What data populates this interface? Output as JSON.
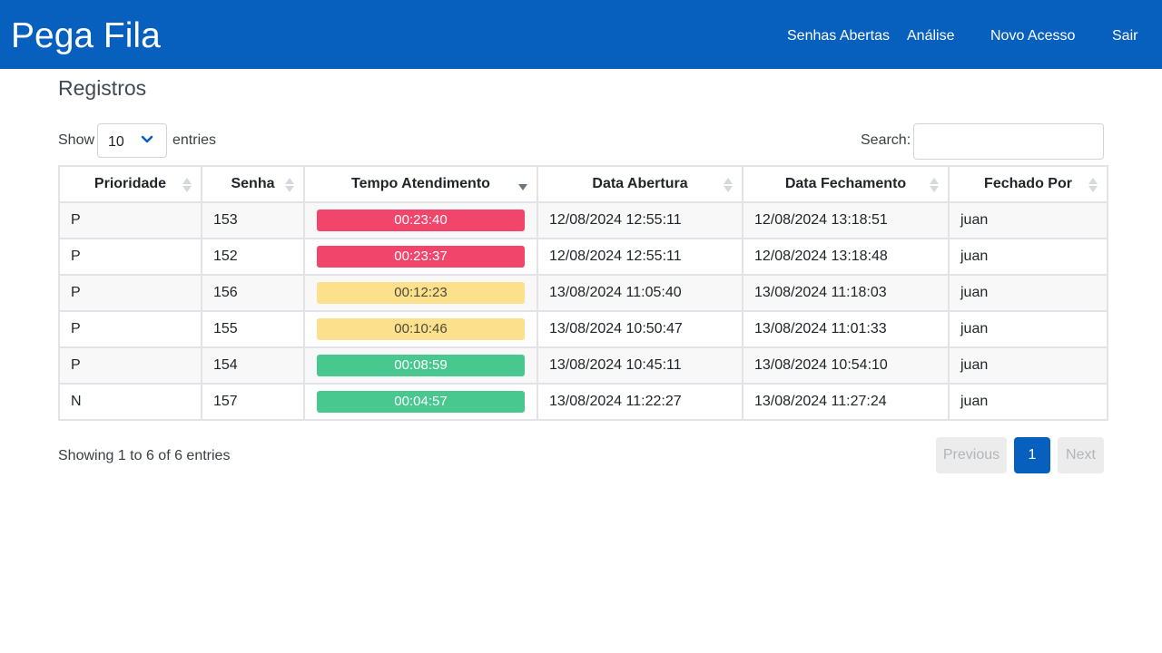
{
  "app": {
    "brand": "Pega Fila"
  },
  "nav": {
    "senhas_abertas": "Senhas Abertas",
    "analise": "Análise",
    "novo_acesso": "Novo Acesso",
    "sair": "Sair"
  },
  "page": {
    "title": "Registros"
  },
  "length_control": {
    "show_label": "Show",
    "value": "10",
    "entries_label": "entries"
  },
  "search": {
    "label": "Search:",
    "value": ""
  },
  "table": {
    "columns": [
      "Prioridade",
      "Senha",
      "Tempo Atendimento",
      "Data Abertura",
      "Data Fechamento",
      "Fechado Por"
    ],
    "sorted_column": "Tempo Atendimento",
    "sort_direction": "descending",
    "rows": [
      {
        "prioridade": "P",
        "senha": "153",
        "tempo": "00:23:40",
        "status": "red",
        "abertura": "12/08/2024 12:55:11",
        "fechamento": "12/08/2024 13:18:51",
        "fechado_por": "juan"
      },
      {
        "prioridade": "P",
        "senha": "152",
        "tempo": "00:23:37",
        "status": "red",
        "abertura": "12/08/2024 12:55:11",
        "fechamento": "12/08/2024 13:18:48",
        "fechado_por": "juan"
      },
      {
        "prioridade": "P",
        "senha": "156",
        "tempo": "00:12:23",
        "status": "yellow",
        "abertura": "13/08/2024 11:05:40",
        "fechamento": "13/08/2024 11:18:03",
        "fechado_por": "juan"
      },
      {
        "prioridade": "P",
        "senha": "155",
        "tempo": "00:10:46",
        "status": "yellow",
        "abertura": "13/08/2024 10:50:47",
        "fechamento": "13/08/2024 11:01:33",
        "fechado_por": "juan"
      },
      {
        "prioridade": "P",
        "senha": "154",
        "tempo": "00:08:59",
        "status": "green",
        "abertura": "13/08/2024 10:45:11",
        "fechamento": "13/08/2024 10:54:10",
        "fechado_por": "juan"
      },
      {
        "prioridade": "N",
        "senha": "157",
        "tempo": "00:04:57",
        "status": "green",
        "abertura": "13/08/2024 11:22:27",
        "fechamento": "13/08/2024 11:27:24",
        "fechado_por": "juan"
      }
    ]
  },
  "status_colors": {
    "red": {
      "bg": "#f1456c",
      "fg": "#ffffff"
    },
    "yellow": {
      "bg": "#fde08b",
      "fg": "#4a4a3a"
    },
    "green": {
      "bg": "#48c78e",
      "fg": "#ffffff"
    }
  },
  "footer": {
    "info": "Showing 1 to 6 of 6 entries"
  },
  "pagination": {
    "previous": "Previous",
    "current": "1",
    "next": "Next"
  },
  "colors": {
    "brand": "#075fbe",
    "row_stripe": "#f8f8f8"
  }
}
